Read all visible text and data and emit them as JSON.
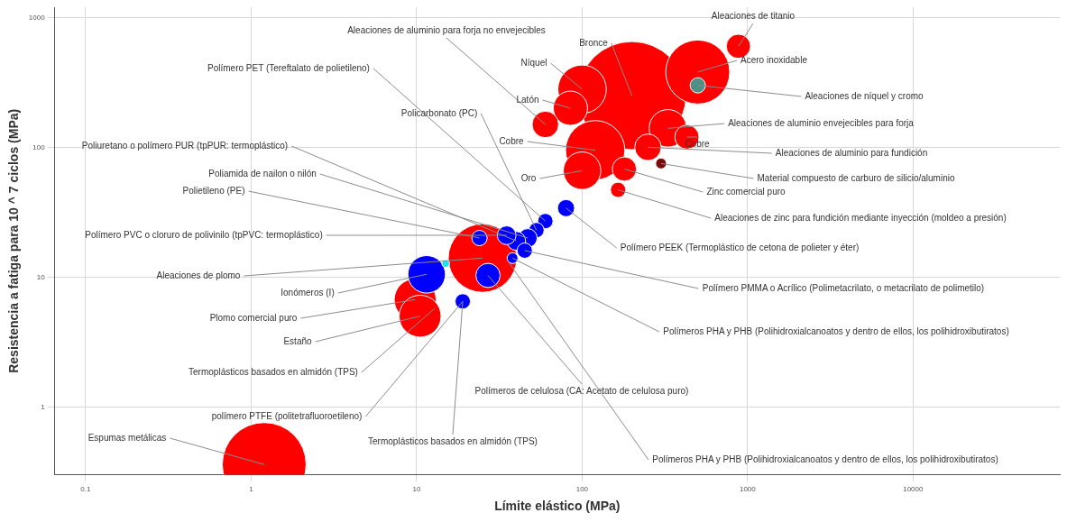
{
  "chart_data": {
    "type": "bubble",
    "xlabel": "Límite elástico (MPa)",
    "ylabel": "Resistencia a fatiga para 10 ^ 7 ciclos (MPa)",
    "log": "xy",
    "grid": true,
    "xlim": [
      0.065,
      77000
    ],
    "ylim": [
      0.3,
      1200
    ],
    "xticks": [
      0.1,
      1,
      10,
      100,
      1000,
      10000
    ],
    "yticks": [
      1,
      10,
      100,
      1000
    ],
    "x": [
      200,
      500,
      100,
      330,
      120,
      85,
      100,
      60,
      250,
      430,
      880,
      180,
      165,
      500,
      300,
      25,
      9.8,
      10.5,
      1.2,
      11.5,
      27,
      80,
      60,
      53,
      47,
      40,
      24,
      35,
      45,
      38,
      19,
      15
    ],
    "values": [
      250,
      380,
      280,
      140,
      95,
      200,
      66,
      150,
      100,
      120,
      600,
      68,
      47,
      300,
      75,
      14,
      6.7,
      5,
      0.36,
      10.5,
      10.3,
      34,
      27,
      23,
      20,
      19,
      20,
      21,
      16,
      14,
      6.5,
      12.7
    ],
    "sizes": [
      1,
      0.35,
      0.2,
      0.12,
      0.3,
      0.1,
      0.12,
      0.06,
      0.06,
      0.05,
      0.05,
      0.05,
      0.02,
      0.02,
      0.01,
      0.4,
      0.15,
      0.15,
      0.6,
      0.12,
      0.05,
      0.025,
      0.02,
      0.02,
      0.03,
      0.03,
      0.02,
      0.03,
      0.02,
      0.01,
      0.02,
      0.005
    ],
    "colors": [
      "#ff0000",
      "#ff0000",
      "#ff0000",
      "#ff0000",
      "#ff0000",
      "#ff0000",
      "#ff0000",
      "#ff0000",
      "#ff0000",
      "#ff0000",
      "#ff0000",
      "#ff0000",
      "#ff0000",
      "#4f8f86",
      "#7a0a0a",
      "#ff0000",
      "#ff0000",
      "#ff0000",
      "#ff0000",
      "#0000ff",
      "#0000ff",
      "#0000ff",
      "#0000ff",
      "#0000ff",
      "#0000ff",
      "#0000ff",
      "#0000ff",
      "#0000ff",
      "#0000ff",
      "#0000ff",
      "#0000ff",
      "#22e0f0"
    ],
    "annotations": [
      {
        "text": "Aleaciones de titanio",
        "x": 880,
        "y": 600
      },
      {
        "text": "Aleaciones de aluminio para forja no envejecibles",
        "x": 60,
        "y": 150
      },
      {
        "text": "Bronce",
        "x": 200,
        "y": 250
      },
      {
        "text": "Níquel",
        "x": 100,
        "y": 280
      },
      {
        "text": "Acero inoxidable",
        "x": 500,
        "y": 380
      },
      {
        "text": "Polímero PET (Tereftalato de polietileno)",
        "x": 60,
        "y": 27
      },
      {
        "text": "Latón",
        "x": 85,
        "y": 200
      },
      {
        "text": "Aleaciones de níquel y cromo",
        "x": 500,
        "y": 300
      },
      {
        "text": "Policarbonato (PC)",
        "x": 53,
        "y": 23
      },
      {
        "text": "Aleaciones de aluminio envejecibles para forja",
        "x": 330,
        "y": 140
      },
      {
        "text": "Cobre",
        "x": 120,
        "y": 95
      },
      {
        "text": "Cobre",
        "x": 430,
        "y": 120
      },
      {
        "text": "Poliuretano o polímero PUR (tpPUR: termoplástico)",
        "x": 40,
        "y": 19
      },
      {
        "text": "Aleaciones de aluminio para fundición",
        "x": 250,
        "y": 100
      },
      {
        "text": "Material compuesto de carburo de silicio/aluminio",
        "x": 300,
        "y": 75
      },
      {
        "text": "Oro",
        "x": 100,
        "y": 66
      },
      {
        "text": "Poliamida de nailon o nilón",
        "x": 47,
        "y": 20
      },
      {
        "text": "Zinc comercial puro",
        "x": 180,
        "y": 68
      },
      {
        "text": "Polietileno (PE)",
        "x": 24,
        "y": 20
      },
      {
        "text": "Aleaciones de zinc para fundición mediante inyección (moldeo a presión)",
        "x": 165,
        "y": 47
      },
      {
        "text": "Polímero PVC o cloruro de polivinilo (tpPVC: termoplástico)",
        "x": 35,
        "y": 21
      },
      {
        "text": "Polímero PEEK (Termoplástico de cetona de polieter y éter)",
        "x": 80,
        "y": 34
      },
      {
        "text": "Aleaciones de plomo",
        "x": 25,
        "y": 14
      },
      {
        "text": "Polímero PMMA o Acrílico (Polimetacrilato, o metacrilato de polimetilo)",
        "x": 45,
        "y": 16
      },
      {
        "text": "Ionómeros (I)",
        "x": 11.5,
        "y": 10.5
      },
      {
        "text": "Plomo comercial puro",
        "x": 9.8,
        "y": 6.7
      },
      {
        "text": "Polímeros PHA y PHB (Polihidroxialcanoatos y dentro de ellos, los polihidroxibutiratos)",
        "x": 38,
        "y": 14
      },
      {
        "text": "Estaño",
        "x": 10.5,
        "y": 5
      },
      {
        "text": "Termoplásticos basados en almidón (TPS)",
        "x": 13,
        "y": 5.8
      },
      {
        "text": "Polímeros de celulosa (CA: Acetato de celulosa puro)",
        "x": 27,
        "y": 10.3
      },
      {
        "text": "polímero PTFE (politetrafluoroetileno)",
        "x": 19,
        "y": 6.5
      },
      {
        "text": "Termoplásticos basados en almidón (TPS)",
        "x": 19,
        "y": 6.5
      },
      {
        "text": "Espumas metálicas",
        "x": 1.2,
        "y": 0.36
      },
      {
        "text": "Polímeros PHA y PHB (Polihidroxialcanoatos y dentro de ellos, los polihidroxibutiratos)",
        "x": 36,
        "y": 13
      }
    ]
  }
}
